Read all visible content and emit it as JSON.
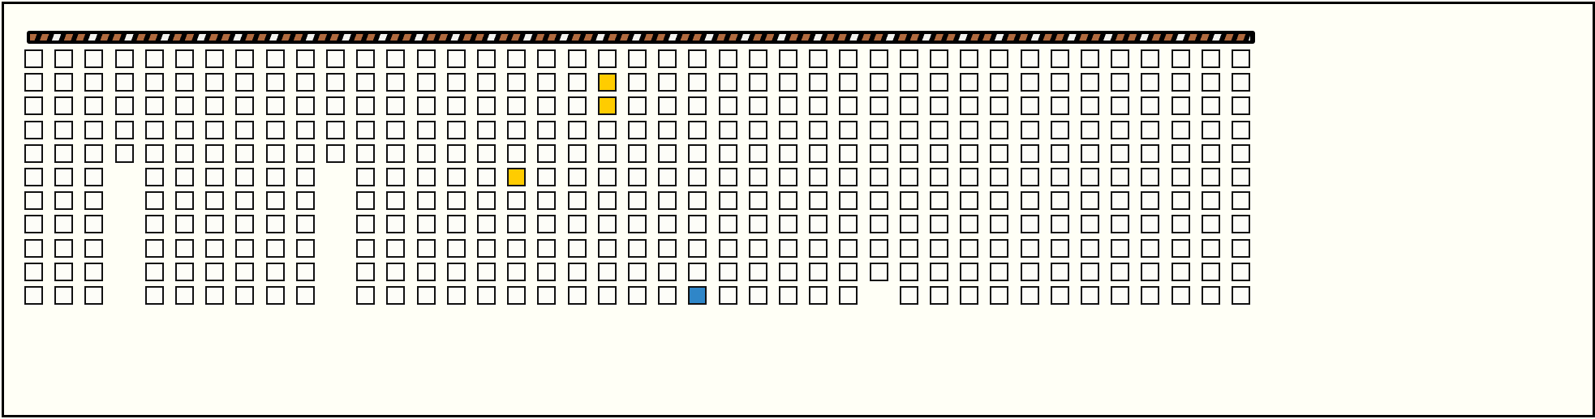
{
  "board": {
    "columns": 41,
    "rows": 11,
    "colors": {
      "background": "#fffff6",
      "cell": "#fdfdf8",
      "border": "#111111",
      "yellow": "#ffcc00",
      "blue": "#2f86c8",
      "bar_brown": "#b06a3e",
      "bar_white": "#f2f2ee"
    },
    "missing_cells": [
      [
        3,
        5
      ],
      [
        3,
        6
      ],
      [
        3,
        7
      ],
      [
        3,
        8
      ],
      [
        3,
        9
      ],
      [
        3,
        10
      ],
      [
        10,
        5
      ],
      [
        10,
        6
      ],
      [
        10,
        7
      ],
      [
        10,
        8
      ],
      [
        10,
        9
      ],
      [
        10,
        10
      ],
      [
        28,
        10
      ]
    ],
    "colored_cells": [
      {
        "col": 19,
        "row": 1,
        "color": "yellow"
      },
      {
        "col": 19,
        "row": 2,
        "color": "yellow"
      },
      {
        "col": 16,
        "row": 5,
        "color": "yellow"
      },
      {
        "col": 22,
        "row": 10,
        "color": "blue"
      }
    ]
  },
  "progress_bar": {
    "pattern": "striped",
    "colors": [
      "brown",
      "white"
    ]
  }
}
